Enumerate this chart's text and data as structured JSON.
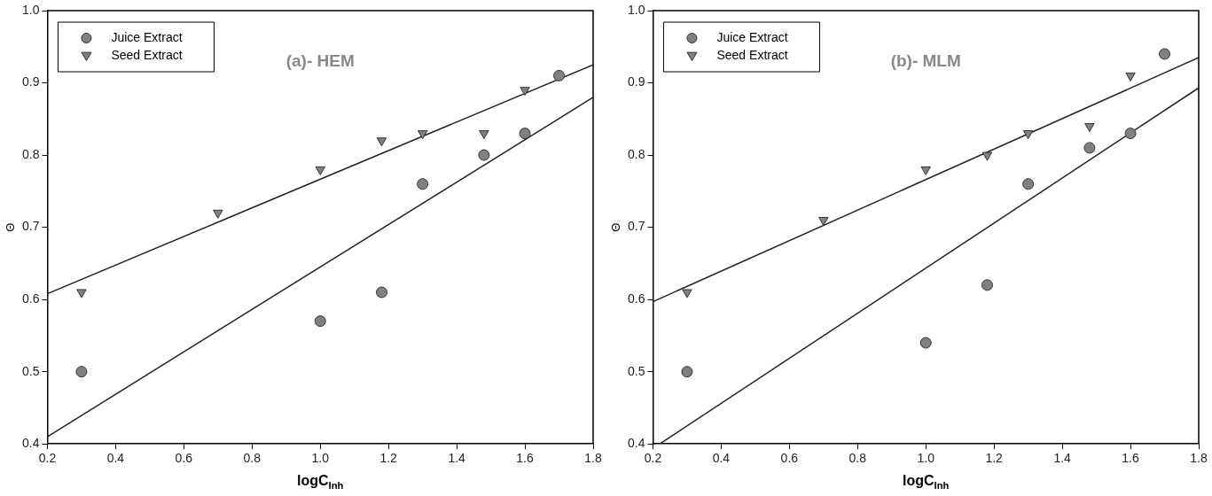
{
  "chart_data": [
    {
      "type": "scatter",
      "title": "(a)- HEM",
      "xlabel": "logC$_{Inh}$",
      "ylabel": "Θ",
      "xlim": [
        0.2,
        1.8
      ],
      "ylim": [
        0.4,
        1.0
      ],
      "xticks": [
        0.2,
        0.4,
        0.6,
        0.8,
        {
          "value": 1.0,
          "label": "1.0"
        },
        1.2,
        1.4,
        1.6,
        1.8
      ],
      "yticks": [
        0.4,
        0.5,
        0.6,
        0.7,
        0.8,
        0.9,
        {
          "value": 1.0,
          "label": "1.0"
        }
      ],
      "grid": false,
      "legend": "top left",
      "series": [
        {
          "name": "Juice Extract",
          "color": "#808080",
          "marker": "circle",
          "x": [
            0.3,
            1.0,
            1.18,
            1.3,
            1.48,
            1.6,
            1.7
          ],
          "values": [
            0.5,
            0.57,
            0.61,
            0.76,
            0.8,
            0.83,
            0.91
          ]
        },
        {
          "name": "Seed Extract",
          "color": "#808080",
          "marker": "triangle",
          "x": [
            0.3,
            0.7,
            1.0,
            1.18,
            1.3,
            1.48,
            1.6
          ],
          "values": [
            0.61,
            0.72,
            0.78,
            0.82,
            0.83,
            0.83,
            0.89
          ]
        },
        {
          "type": "line",
          "color": "#222222",
          "x": [
            0.2,
            1.8
          ],
          "values": [
            0.608,
            0.925
          ]
        },
        {
          "type": "line",
          "color": "#222222",
          "x": [
            0.2,
            1.8
          ],
          "values": [
            0.41,
            0.88
          ]
        }
      ]
    },
    {
      "type": "scatter",
      "title": "(b)- MLM",
      "xlabel": "logC$_{Inh}$",
      "ylabel": "Θ",
      "xlim": [
        0.2,
        1.8
      ],
      "ylim": [
        0.4,
        1.0
      ],
      "xticks": [
        0.2,
        0.4,
        0.6,
        0.8,
        {
          "value": 1.0,
          "label": "1.0"
        },
        1.2,
        1.4,
        1.6,
        1.8
      ],
      "yticks": [
        0.4,
        0.5,
        0.6,
        0.7,
        0.8,
        0.9,
        {
          "value": 1.0,
          "label": "1.0"
        }
      ],
      "grid": false,
      "legend": "top left",
      "series": [
        {
          "name": "Juice Extract",
          "color": "#808080",
          "marker": "circle",
          "x": [
            0.3,
            1.0,
            1.18,
            1.3,
            1.48,
            1.6,
            1.7
          ],
          "values": [
            0.5,
            0.54,
            0.62,
            0.76,
            0.81,
            0.83,
            0.94
          ]
        },
        {
          "name": "Seed Extract",
          "color": "#808080",
          "marker": "triangle",
          "x": [
            0.3,
            0.7,
            1.0,
            1.18,
            1.3,
            1.48,
            1.6
          ],
          "values": [
            0.61,
            0.71,
            0.78,
            0.8,
            0.83,
            0.84,
            0.91
          ]
        },
        {
          "type": "line",
          "color": "#222222",
          "x": [
            0.2,
            1.8
          ],
          "values": [
            0.597,
            0.935
          ]
        },
        {
          "type": "line",
          "color": "#222222",
          "x": [
            0.22,
            1.8
          ],
          "values": [
            0.4,
            0.893
          ]
        }
      ]
    }
  ]
}
